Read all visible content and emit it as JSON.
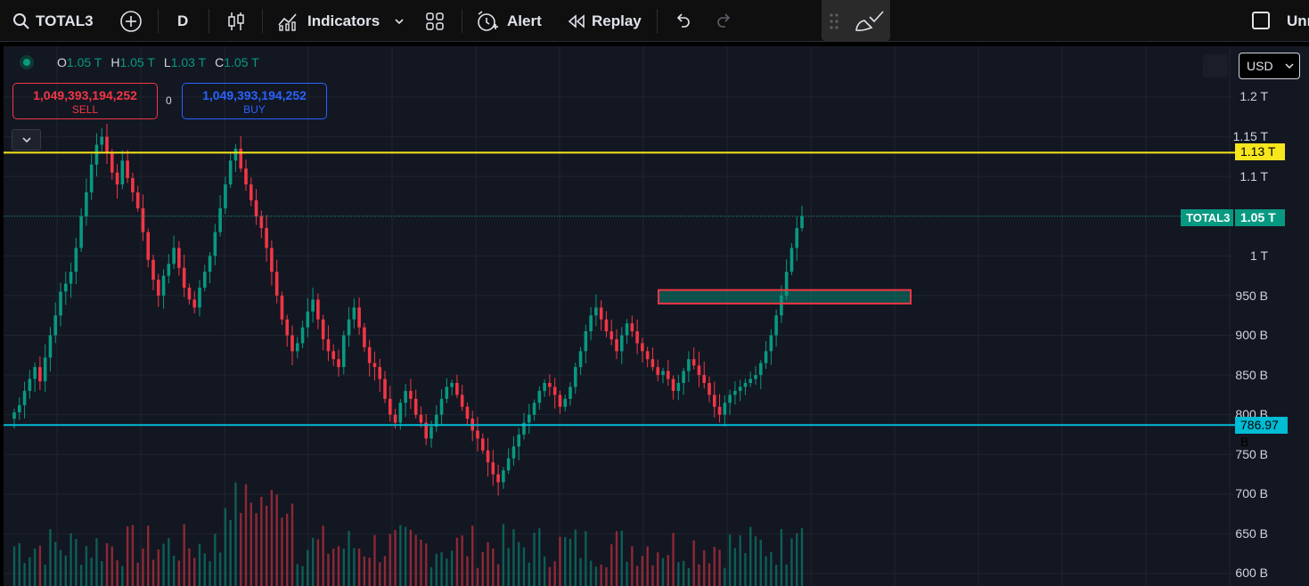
{
  "toolbar": {
    "symbol": "TOTAL3",
    "interval": "D",
    "indicators_label": "Indicators",
    "alert_label": "Alert",
    "replay_label": "Replay",
    "right_label": "Unr"
  },
  "legend": {
    "o_key": "O",
    "o_val": "1.05 T",
    "h_key": "H",
    "h_val": "1.05 T",
    "l_key": "L",
    "l_val": "1.03 T",
    "c_key": "C",
    "c_val": "1.05 T"
  },
  "order": {
    "sell_price": "1,049,393,194,252",
    "sell_label": "SELL",
    "spread": "0",
    "buy_price": "1,049,393,194,252",
    "buy_label": "BUY"
  },
  "currency": "USD",
  "price_axis": [
    "1.2 T",
    "1.15 T",
    "1.1 T",
    "1 T",
    "950 B",
    "900 B",
    "850 B",
    "800 B",
    "750 B",
    "700 B",
    "650 B",
    "600 B"
  ],
  "tags": {
    "yellow_line": "1.13 T",
    "cyan_line": "786.97 B",
    "symbol_tag": "TOTAL3",
    "last_price": "1.05 T"
  },
  "colors": {
    "up": "#089981",
    "down": "#f23645",
    "yellow_line": "#f7e51d",
    "cyan_line": "#00bcd4",
    "background": "#131722"
  },
  "chart_data": {
    "type": "candlestick",
    "ylim": [
      590,
      1240
    ],
    "y_unit": "B",
    "horizontal_lines": [
      1130,
      786.97
    ],
    "last_price": 1050,
    "zone": {
      "low": 940,
      "high": 957
    },
    "closes": [
      803,
      812,
      830,
      845,
      860,
      842,
      872,
      900,
      925,
      955,
      965,
      980,
      1010,
      1050,
      1080,
      1115,
      1140,
      1150,
      1130,
      1105,
      1090,
      1120,
      1098,
      1080,
      1060,
      1030,
      995,
      970,
      950,
      975,
      990,
      1010,
      985,
      960,
      945,
      935,
      960,
      980,
      1000,
      1030,
      1060,
      1090,
      1120,
      1135,
      1110,
      1090,
      1070,
      1050,
      1035,
      1010,
      980,
      950,
      920,
      900,
      880,
      890,
      910,
      930,
      945,
      920,
      895,
      880,
      870,
      860,
      900,
      920,
      935,
      910,
      885,
      865,
      860,
      845,
      820,
      800,
      790,
      815,
      830,
      820,
      800,
      790,
      770,
      785,
      800,
      820,
      835,
      840,
      825,
      810,
      795,
      780,
      770,
      755,
      740,
      725,
      715,
      730,
      745,
      760,
      775,
      790,
      800,
      815,
      830,
      840,
      835,
      825,
      810,
      820,
      835,
      860,
      880,
      905,
      925,
      935,
      920,
      905,
      895,
      880,
      900,
      915,
      905,
      890,
      880,
      870,
      860,
      850,
      855,
      845,
      830,
      840,
      855,
      870,
      862,
      850,
      840,
      825,
      810,
      800,
      815,
      825,
      830,
      835,
      840,
      845,
      850,
      865,
      880,
      900,
      925,
      950,
      980,
      1010,
      1035,
      1050
    ]
  }
}
